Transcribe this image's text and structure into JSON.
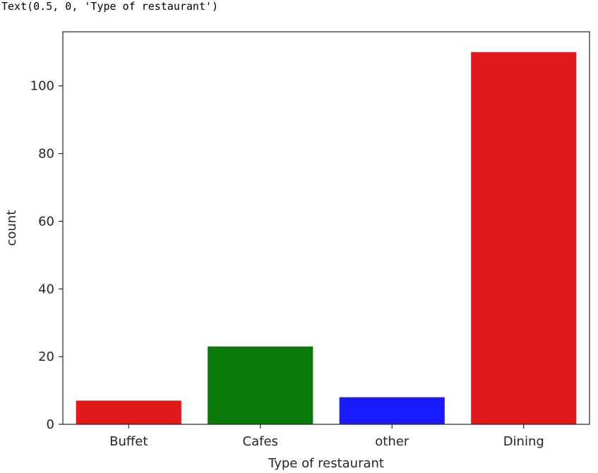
{
  "output_text": "Text(0.5, 0, 'Type of restaurant')",
  "chart_data": {
    "type": "bar",
    "categories": [
      "Buffet",
      "Cafes",
      "other",
      "Dining"
    ],
    "values": [
      7,
      23,
      8,
      110
    ],
    "colors": [
      "#e31a1c",
      "#0a7a0a",
      "#1a1aff",
      "#e31a1c"
    ],
    "xlabel": "Type of restaurant",
    "ylabel": "count",
    "ylim": [
      0,
      116
    ],
    "yticks": [
      0,
      20,
      40,
      60,
      80,
      100
    ],
    "grid": false
  }
}
